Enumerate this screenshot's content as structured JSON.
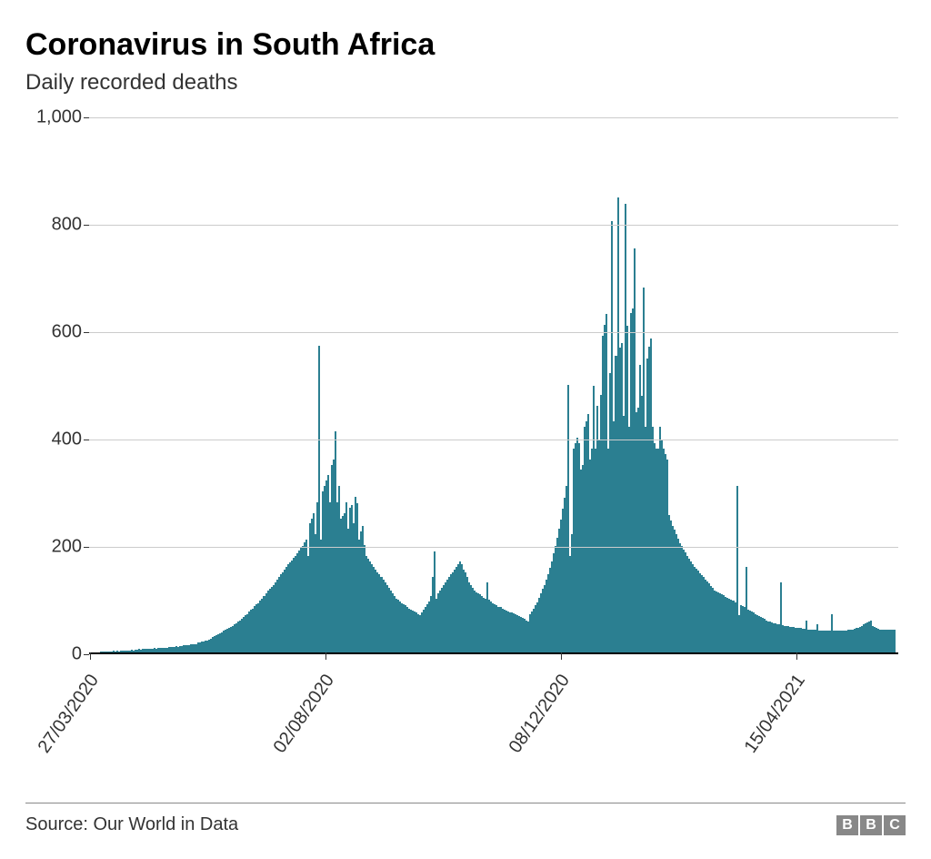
{
  "title": "Coronavirus in South Africa",
  "subtitle": "Daily recorded deaths",
  "source": "Source: Our World in Data",
  "logo": [
    "B",
    "B",
    "C"
  ],
  "chart": {
    "type": "bar",
    "bar_color": "#2b7f91",
    "background_color": "#ffffff",
    "grid_color": "#cccccc",
    "axis_color": "#000000",
    "text_color": "#333333",
    "title_fontsize": 34,
    "subtitle_fontsize": 24,
    "label_fontsize": 20,
    "ylim": [
      0,
      1000
    ],
    "ytick_step": 200,
    "yticks": [
      {
        "value": 0,
        "label": "0"
      },
      {
        "value": 200,
        "label": "200"
      },
      {
        "value": 400,
        "label": "400"
      },
      {
        "value": 600,
        "label": "600"
      },
      {
        "value": 800,
        "label": "800"
      },
      {
        "value": 1000,
        "label": "1,000"
      }
    ],
    "xticks": [
      {
        "index": 0,
        "label": "27/03/2020"
      },
      {
        "index": 128,
        "label": "02/08/2020"
      },
      {
        "index": 256,
        "label": "08/12/2020"
      },
      {
        "index": 384,
        "label": "15/04/2021"
      }
    ],
    "values": [
      0,
      0,
      0,
      0,
      0,
      0,
      1,
      1,
      2,
      1,
      2,
      2,
      2,
      3,
      2,
      3,
      2,
      3,
      3,
      4,
      3,
      4,
      4,
      5,
      4,
      5,
      5,
      6,
      5,
      6,
      6,
      7,
      6,
      7,
      7,
      8,
      7,
      8,
      8,
      9,
      8,
      9,
      9,
      10,
      10,
      11,
      10,
      12,
      11,
      12,
      12,
      13,
      13,
      14,
      14,
      15,
      15,
      16,
      16,
      18,
      18,
      20,
      20,
      22,
      22,
      24,
      26,
      28,
      30,
      32,
      34,
      36,
      38,
      40,
      42,
      44,
      46,
      48,
      50,
      52,
      55,
      58,
      60,
      63,
      66,
      70,
      72,
      76,
      80,
      82,
      86,
      90,
      92,
      96,
      100,
      105,
      110,
      115,
      118,
      122,
      126,
      130,
      135,
      140,
      145,
      150,
      155,
      160,
      165,
      168,
      172,
      176,
      180,
      185,
      190,
      195,
      198,
      205,
      210,
      180,
      240,
      250,
      260,
      220,
      280,
      572,
      210,
      300,
      310,
      320,
      330,
      280,
      350,
      360,
      412,
      280,
      310,
      250,
      255,
      260,
      280,
      230,
      270,
      275,
      240,
      290,
      278,
      210,
      225,
      235,
      200,
      180,
      175,
      170,
      165,
      160,
      155,
      150,
      145,
      140,
      135,
      130,
      125,
      120,
      115,
      110,
      105,
      100,
      98,
      95,
      92,
      90,
      88,
      85,
      82,
      80,
      78,
      76,
      74,
      72,
      70,
      75,
      80,
      85,
      90,
      95,
      105,
      140,
      188,
      100,
      110,
      115,
      120,
      125,
      130,
      135,
      140,
      145,
      150,
      155,
      160,
      165,
      170,
      165,
      155,
      150,
      140,
      130,
      125,
      120,
      115,
      112,
      110,
      108,
      105,
      102,
      100,
      130,
      98,
      95,
      92,
      90,
      88,
      85,
      84,
      82,
      80,
      78,
      76,
      75,
      74,
      73,
      72,
      70,
      68,
      66,
      64,
      62,
      60,
      58,
      72,
      76,
      82,
      88,
      94,
      102,
      110,
      118,
      126,
      136,
      146,
      158,
      170,
      184,
      198,
      214,
      230,
      248,
      268,
      288,
      310,
      498,
      180,
      220,
      380,
      390,
      400,
      390,
      340,
      350,
      420,
      430,
      444,
      360,
      380,
      496,
      380,
      460,
      396,
      480,
      590,
      610,
      630,
      380,
      520,
      804,
      430,
      552,
      848,
      568,
      576,
      440,
      836,
      608,
      420,
      632,
      640,
      752,
      448,
      456,
      536,
      478,
      680,
      420,
      548,
      570,
      584,
      420,
      390,
      380,
      380,
      420,
      396,
      380,
      370,
      360,
      256,
      246,
      236,
      228,
      220,
      212,
      204,
      198,
      192,
      186,
      180,
      175,
      170,
      165,
      160,
      156,
      152,
      148,
      144,
      140,
      136,
      132,
      128,
      124,
      120,
      116,
      114,
      112,
      110,
      108,
      106,
      104,
      102,
      100,
      98,
      96,
      94,
      310,
      70,
      88,
      86,
      84,
      160,
      80,
      78,
      76,
      74,
      72,
      70,
      68,
      66,
      64,
      62,
      60,
      58,
      57,
      56,
      55,
      54,
      53,
      52,
      130,
      51,
      50,
      50,
      49,
      48,
      48,
      47,
      46,
      46,
      45,
      45,
      44,
      44,
      60,
      43,
      43,
      42,
      42,
      42,
      52,
      41,
      41,
      41,
      40,
      40,
      40,
      40,
      72,
      40,
      40,
      40,
      40,
      40,
      40,
      41,
      41,
      42,
      42,
      43,
      44,
      45,
      46,
      48,
      50,
      52,
      54,
      56,
      58,
      60,
      50,
      48,
      46,
      44,
      42,
      42,
      42,
      42,
      42,
      42,
      42,
      42,
      42
    ]
  }
}
